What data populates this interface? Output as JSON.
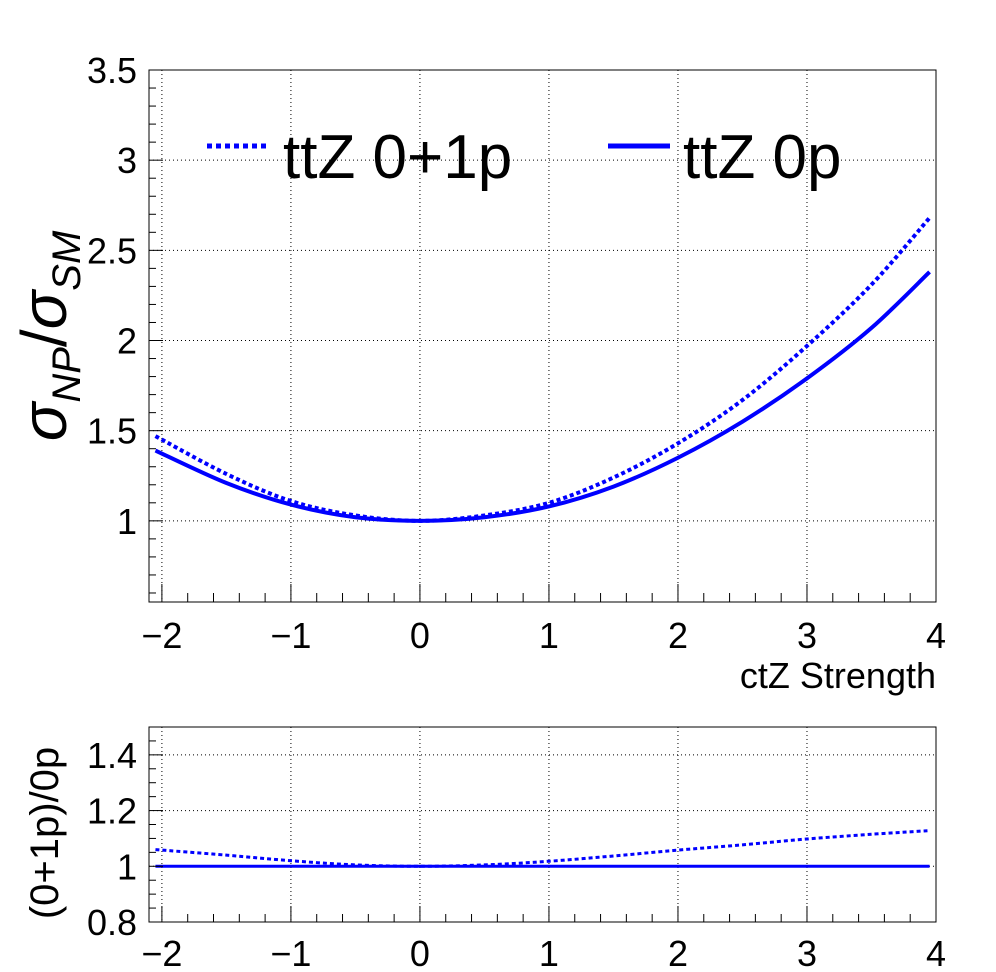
{
  "chart_data": [
    {
      "type": "line",
      "panel": "main",
      "xlabel": "ctZ Strength",
      "ylabel": {
        "base": "σ",
        "num_sub": "NP",
        "sep": "/",
        "den_base": "σ",
        "den_sub": "SM"
      },
      "xlim": [
        -2.1,
        4
      ],
      "ylim": [
        0.55,
        3.5
      ],
      "xticks": [
        -2,
        -1,
        0,
        1,
        2,
        3,
        4
      ],
      "xtick_labels": [
        "−2",
        "−1",
        "0",
        "1",
        "2",
        "3",
        "4"
      ],
      "yticks": [
        1,
        1.5,
        2,
        2.5,
        3,
        3.5
      ],
      "ytick_labels": [
        "1",
        "1.5",
        "2",
        "2.5",
        "3",
        "3.5"
      ],
      "grid": true,
      "legend_placement": "top",
      "series": [
        {
          "name": "ttZ 0+1p",
          "style": "dotted",
          "color": "#0000ff",
          "x": [
            -2.05,
            -1.5,
            -1,
            -0.5,
            0,
            0.5,
            1,
            1.5,
            2,
            2.5,
            3,
            3.5,
            3.95
          ],
          "y": [
            1.47,
            1.26,
            1.11,
            1.03,
            1.0,
            1.03,
            1.1,
            1.24,
            1.43,
            1.67,
            1.97,
            2.31,
            2.68
          ]
        },
        {
          "name": "ttZ 0p",
          "style": "solid",
          "color": "#0000ff",
          "x": [
            -2.05,
            -1.5,
            -1,
            -0.5,
            0,
            0.5,
            1,
            1.5,
            2,
            2.5,
            3,
            3.5,
            3.95
          ],
          "y": [
            1.39,
            1.21,
            1.09,
            1.02,
            1.0,
            1.02,
            1.08,
            1.19,
            1.35,
            1.55,
            1.79,
            2.07,
            2.38
          ]
        }
      ]
    },
    {
      "type": "line",
      "panel": "ratio",
      "ylabel": "(0+1p)/0p",
      "xlim": [
        -2.1,
        4
      ],
      "ylim": [
        0.8,
        1.5
      ],
      "xticks": [
        -2,
        -1,
        0,
        1,
        2,
        3,
        4
      ],
      "xtick_labels": [
        "−2",
        "−1",
        "0",
        "1",
        "2",
        "3",
        "4"
      ],
      "yticks": [
        0.8,
        1,
        1.2,
        1.4
      ],
      "ytick_labels": [
        "0.8",
        "1",
        "1.2",
        "1.4"
      ],
      "grid": true,
      "series": [
        {
          "style": "dotted",
          "color": "#0000ff",
          "x": [
            -2.05,
            -1.5,
            -1,
            -0.5,
            0,
            0.5,
            1,
            1.5,
            2,
            2.5,
            3,
            3.5,
            3.95
          ],
          "y": [
            1.06,
            1.04,
            1.02,
            1.005,
            1.0,
            1.005,
            1.018,
            1.037,
            1.058,
            1.077,
            1.098,
            1.115,
            1.128
          ]
        },
        {
          "style": "solid",
          "color": "#0000ff",
          "x": [
            -2.05,
            3.95
          ],
          "y": [
            1.0,
            1.0
          ]
        }
      ]
    }
  ]
}
